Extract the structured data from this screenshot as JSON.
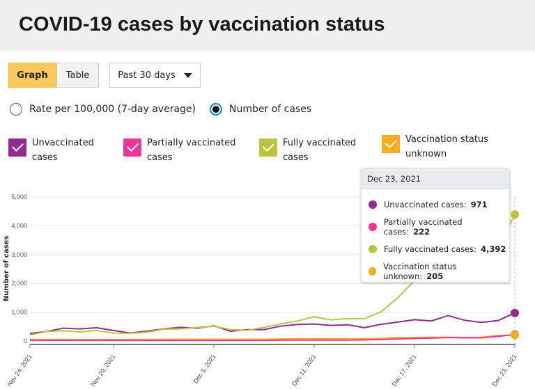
{
  "title": "COVID-19 cases by vaccination status",
  "view_toggle": {
    "graph": "Graph",
    "table": "Table"
  },
  "range_select": "Past 30 days",
  "radios": [
    {
      "label": "Rate per 100,000 (7-day average)",
      "selected": false
    },
    {
      "label": "Number of cases",
      "selected": true
    }
  ],
  "legend": [
    {
      "line1": "Unvaccinated",
      "line2": "cases",
      "color": "#932a91",
      "checked": true
    },
    {
      "line1": "Partially vaccinated",
      "line2": "cases",
      "color": "#f0359a",
      "checked": true
    },
    {
      "line1": "Fully vaccinated",
      "line2": "cases",
      "color": "#bcc43c",
      "checked": true
    },
    {
      "line1": "Vaccination status",
      "line2": "unknown",
      "color": "#fdac1a",
      "checked": true
    }
  ],
  "tooltip": {
    "date": "Dec 23, 2021",
    "rows": [
      {
        "label": "Unvaccinated cases:",
        "value": "971",
        "color": "#932a91"
      },
      {
        "label": "Partially vaccinated cases:",
        "value": "222",
        "color": "#f0359a"
      },
      {
        "label": "Fully vaccinated cases:",
        "value": "4,392",
        "color": "#bcc43c"
      },
      {
        "label": "Vaccination status unknown:",
        "value": "205",
        "color": "#fdac1a"
      }
    ]
  },
  "chart_data": {
    "type": "line",
    "ylabel": "Number of cases",
    "ylim": [
      0,
      5000
    ],
    "yticks": [
      "0",
      "1,000",
      "2,000",
      "3,000",
      "4,000",
      "5,000"
    ],
    "xtick_labels": [
      "Nov 24, 2021",
      "Nov 29, 2021",
      "Dec 5, 2021",
      "Dec 11, 2021",
      "Dec 17, 2021",
      "Dec 23, 2021"
    ],
    "x_start": "Nov 24, 2021",
    "x_end": "Dec 23, 2021",
    "grid": true,
    "series": [
      {
        "name": "Unvaccinated cases",
        "color": "#932a91",
        "values": [
          260,
          330,
          445,
          420,
          460,
          365,
          275,
          340,
          420,
          475,
          445,
          525,
          340,
          395,
          395,
          515,
          575,
          590,
          540,
          565,
          460,
          580,
          655,
          740,
          695,
          880,
          720,
          645,
          710,
          971
        ]
      },
      {
        "name": "Partially vaccinated cases",
        "color": "#f0359a",
        "values": [
          20,
          20,
          25,
          20,
          20,
          20,
          20,
          20,
          20,
          20,
          20,
          20,
          20,
          20,
          20,
          30,
          30,
          30,
          30,
          30,
          40,
          50,
          70,
          90,
          100,
          120,
          110,
          110,
          160,
          222
        ]
      },
      {
        "name": "Fully vaccinated cases",
        "color": "#bcc43c",
        "values": [
          210,
          330,
          355,
          315,
          365,
          275,
          265,
          305,
          410,
          420,
          470,
          510,
          395,
          370,
          470,
          590,
          695,
          840,
          735,
          775,
          775,
          1010,
          1500,
          2100,
          2300,
          2965,
          2750,
          2475,
          3230,
          4392
        ]
      },
      {
        "name": "Vaccination status unknown",
        "color": "#fdac1a",
        "values": [
          50,
          50,
          55,
          45,
          50,
          45,
          50,
          55,
          55,
          60,
          60,
          60,
          55,
          60,
          60,
          70,
          80,
          75,
          75,
          80,
          80,
          85,
          120,
          120,
          130,
          130,
          125,
          130,
          190,
          205
        ]
      }
    ]
  }
}
